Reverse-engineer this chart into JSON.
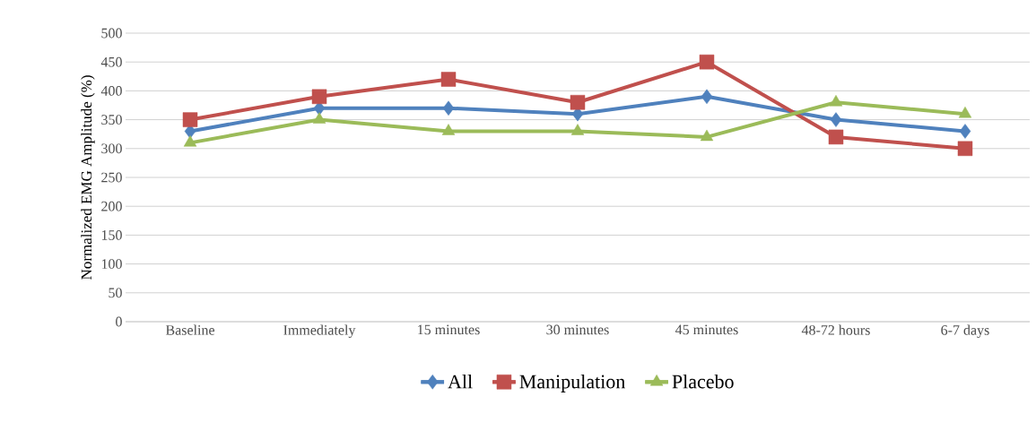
{
  "chart_data": {
    "type": "line",
    "ylabel": "Normalized EMG Amplitude  (%)",
    "categories": [
      "Baseline",
      "Immediately",
      "15 minutes",
      "30 minutes",
      "45 minutes",
      "48-72 hours",
      "6-7 days"
    ],
    "series": [
      {
        "name": "All",
        "color": "#4f81bd",
        "marker": "diamond",
        "values": [
          330,
          370,
          370,
          360,
          390,
          350,
          330
        ]
      },
      {
        "name": "Manipulation",
        "color": "#c0504d",
        "marker": "square",
        "values": [
          350,
          390,
          420,
          380,
          450,
          320,
          300
        ]
      },
      {
        "name": "Placebo",
        "color": "#9bbb59",
        "marker": "triangle",
        "values": [
          310,
          350,
          330,
          330,
          320,
          380,
          360
        ]
      }
    ],
    "ylim": [
      0,
      500
    ],
    "yticks": [
      0,
      50,
      100,
      150,
      200,
      250,
      300,
      350,
      400,
      450,
      500
    ],
    "grid": "y",
    "legend": "bottom",
    "line_style": "solid"
  }
}
